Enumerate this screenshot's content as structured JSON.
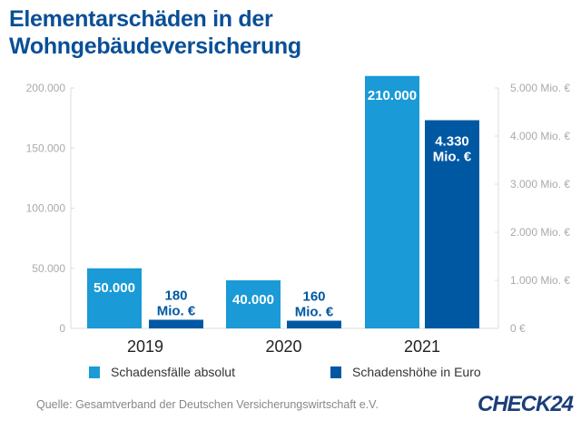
{
  "title_line1": "Elementarschäden in der",
  "title_line2": "Wohngebäudeversicherung",
  "source": "Quelle: Gesamtverband der Deutschen Versicherungswirtschaft e.V.",
  "logo": "CHECK24",
  "colors": {
    "schadensfaelle": "#1a9ad6",
    "schadenshoehe": "#0058a3",
    "title": "#0a4f97"
  },
  "chart_data": {
    "type": "bar",
    "categories": [
      "2019",
      "2020",
      "2021"
    ],
    "series": [
      {
        "name": "Schadensfälle absolut",
        "axis": "left",
        "values": [
          50000,
          40000,
          210000
        ],
        "labels": [
          "50.000",
          "40.000",
          "210.000"
        ]
      },
      {
        "name": "Schadenshöhe in Euro",
        "axis": "right",
        "values": [
          180,
          160,
          4330
        ],
        "labels": [
          "180 Mio. €",
          "160 Mio. €",
          "4.330 Mio. €"
        ]
      }
    ],
    "left_axis": {
      "ylim": [
        0,
        200000
      ],
      "ticks": [
        0,
        50000,
        100000,
        150000,
        200000
      ],
      "tick_labels": [
        "0",
        "50.000",
        "100.000",
        "150.000",
        "200.000"
      ]
    },
    "right_axis": {
      "ylim": [
        0,
        5000
      ],
      "ticks": [
        0,
        1000,
        2000,
        3000,
        4000,
        5000
      ],
      "tick_labels": [
        "0 €",
        "1.000 Mio. €",
        "2.000 Mio. €",
        "3.000 Mio. €",
        "4.000 Mio. €",
        "5.000 Mio. €"
      ]
    },
    "grid": false,
    "legend": "bottom"
  }
}
